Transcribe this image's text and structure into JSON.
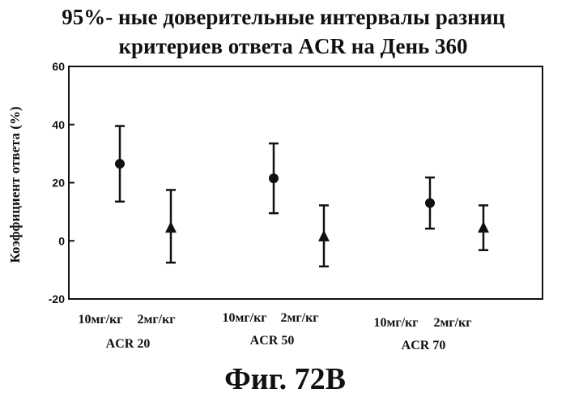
{
  "chart_data": {
    "type": "errorbar",
    "title_line1": "95%- ные доверительные интервалы разниц",
    "title_line2": "критериев ответа ACR на День 360",
    "ylabel": "Коэффициент ответа (%)",
    "xlabel": "",
    "ylim": [
      -20,
      60
    ],
    "yticks": [
      "60",
      "40",
      "20",
      "0",
      "-20"
    ],
    "grid": false,
    "groups": [
      {
        "label": "ACR 20",
        "dose_labels": [
          "10мг/кг",
          "2мг/кг"
        ]
      },
      {
        "label": "ACR 50",
        "dose_labels": [
          "10мг/кг",
          "2мг/кг"
        ]
      },
      {
        "label": "ACR 70",
        "dose_labels": [
          "10мг/кг",
          "2мг/кг"
        ]
      }
    ],
    "points": [
      {
        "group": "ACR 20",
        "dose": "10мг/кг",
        "marker": "circle",
        "value": 26.5,
        "low": 13.5,
        "high": 39.5
      },
      {
        "group": "ACR 20",
        "dose": "2мг/кг",
        "marker": "triangle",
        "value": 4.5,
        "low": -7.5,
        "high": 17.5
      },
      {
        "group": "ACR 50",
        "dose": "10мг/кг",
        "marker": "circle",
        "value": 21.5,
        "low": 9.5,
        "high": 33.5
      },
      {
        "group": "ACR 50",
        "dose": "2мг/кг",
        "marker": "triangle",
        "value": 1.5,
        "low": -8.8,
        "high": 12.2
      },
      {
        "group": "ACR 70",
        "dose": "10мг/кг",
        "marker": "circle",
        "value": 13.0,
        "low": 4.2,
        "high": 21.8
      },
      {
        "group": "ACR 70",
        "dose": "2мг/кг",
        "marker": "triangle",
        "value": 4.5,
        "low": -3.2,
        "high": 12.2
      }
    ]
  },
  "caption": "Фиг. 72В"
}
